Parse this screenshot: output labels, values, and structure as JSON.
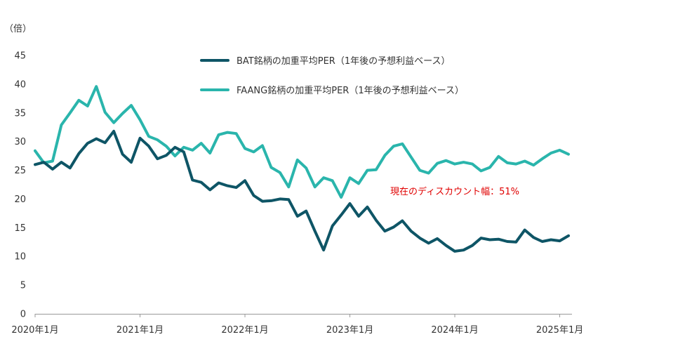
{
  "chart_data": {
    "type": "line",
    "y_unit_label": "（倍）",
    "ylim": [
      0,
      45
    ],
    "yticks": [
      0,
      5,
      10,
      15,
      20,
      25,
      30,
      35,
      40,
      45
    ],
    "xlim": [
      0,
      61
    ],
    "xticks": [
      {
        "value": 0,
        "label": "2020年1月"
      },
      {
        "value": 12,
        "label": "2021年1月"
      },
      {
        "value": 24,
        "label": "2022年1月"
      },
      {
        "value": 36,
        "label": "2023年1月"
      },
      {
        "value": 48,
        "label": "2024年1月"
      },
      {
        "value": 60,
        "label": "2025年1月"
      }
    ],
    "series": [
      {
        "name": "BAT銘柄の加重平均PER（1年後の予想利益ベース）",
        "color": "#0e5566",
        "values": [
          26.0,
          26.4,
          25.2,
          26.4,
          25.4,
          27.9,
          29.7,
          30.5,
          29.8,
          31.8,
          27.8,
          26.4,
          30.6,
          29.2,
          27.0,
          27.6,
          29.0,
          28.2,
          23.3,
          22.9,
          21.6,
          22.8,
          22.3,
          22.0,
          23.2,
          20.6,
          19.6,
          19.7,
          20.0,
          19.9,
          17.0,
          17.9,
          14.4,
          11.1,
          15.3,
          17.2,
          19.2,
          17.0,
          18.6,
          16.3,
          14.4,
          15.1,
          16.2,
          14.4,
          13.2,
          12.3,
          13.1,
          11.9,
          10.9,
          11.1,
          11.9,
          13.2,
          12.9,
          13.0,
          12.6,
          12.5,
          14.6,
          13.3,
          12.6,
          12.9,
          12.7,
          13.6
        ]
      },
      {
        "name": "FAANG銘柄の加重平均PER（1年後の予想利益ベース）",
        "color": "#2ab5ac",
        "values": [
          28.4,
          26.3,
          26.6,
          32.9,
          35.0,
          37.2,
          36.2,
          39.6,
          35.1,
          33.3,
          34.9,
          36.3,
          33.8,
          30.9,
          30.3,
          29.2,
          27.5,
          29.0,
          28.5,
          29.7,
          28.0,
          31.2,
          31.6,
          31.4,
          28.8,
          28.2,
          29.3,
          25.5,
          24.6,
          22.1,
          26.8,
          25.4,
          22.1,
          23.7,
          23.2,
          20.3,
          23.7,
          22.7,
          25.0,
          25.1,
          27.6,
          29.2,
          29.6,
          27.3,
          25.0,
          24.5,
          26.2,
          26.7,
          26.1,
          26.4,
          26.1,
          24.9,
          25.5,
          27.4,
          26.3,
          26.1,
          26.6,
          25.9,
          27.0,
          28.0,
          28.5,
          27.8
        ]
      }
    ],
    "annotation": {
      "text": "現在のディスカウント幅：51%",
      "color": "#e00000"
    }
  }
}
